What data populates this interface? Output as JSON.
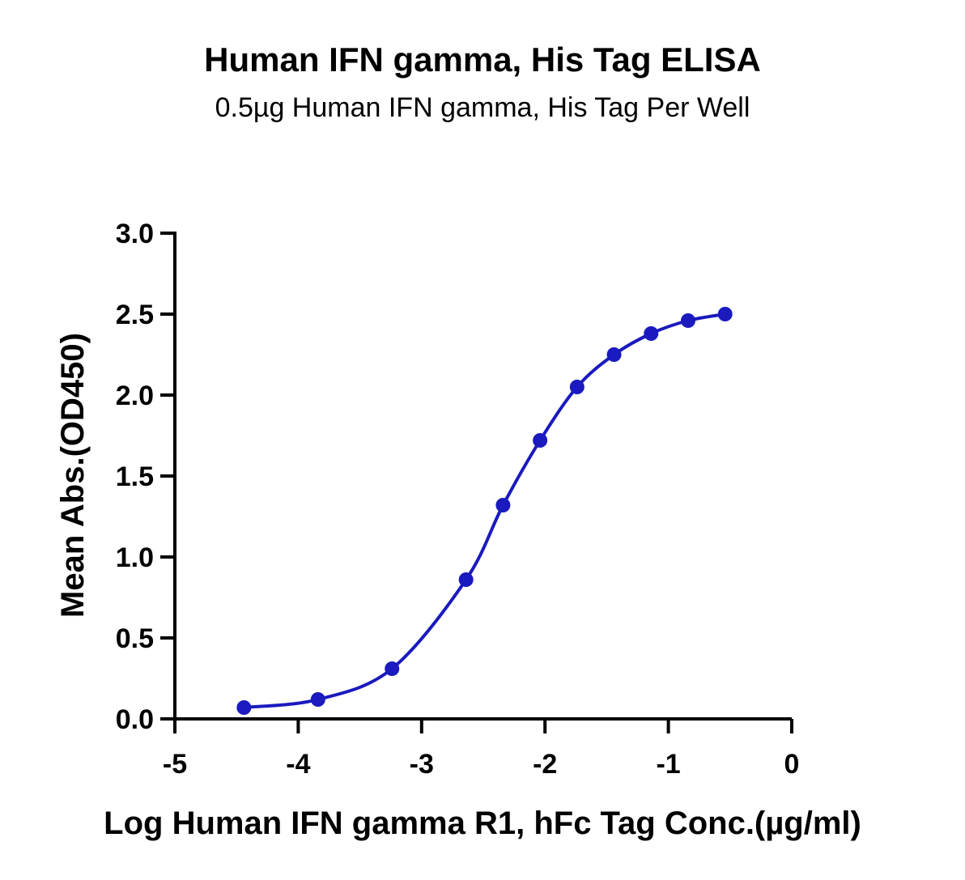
{
  "chart_data": {
    "type": "scatter",
    "title": "Human IFN gamma, His Tag ELISA",
    "subtitle": "0.5µg Human IFN gamma, His Tag Per Well",
    "xlabel": "Log Human IFN gamma R1, hFc Tag Conc.(µg/ml)",
    "ylabel": "Mean Abs.(OD450)",
    "xlim": [
      -5,
      0
    ],
    "ylim": [
      0,
      3.0
    ],
    "x_ticks": [
      "-5",
      "-4",
      "-3",
      "-2",
      "-1",
      "0"
    ],
    "y_ticks": [
      "0.0",
      "0.5",
      "1.0",
      "1.5",
      "2.0",
      "2.5",
      "3.0"
    ],
    "grid": false,
    "color": "#1a1abf",
    "series": [
      {
        "x": [
          -4.44,
          -3.84,
          -3.24,
          -2.64,
          -2.34,
          -2.04,
          -1.74,
          -1.44,
          -1.14,
          -0.84,
          -0.54
        ],
        "values": [
          0.07,
          0.12,
          0.31,
          0.86,
          1.32,
          1.72,
          2.05,
          2.25,
          2.38,
          2.46,
          2.5
        ],
        "fit": "4PL"
      }
    ]
  }
}
